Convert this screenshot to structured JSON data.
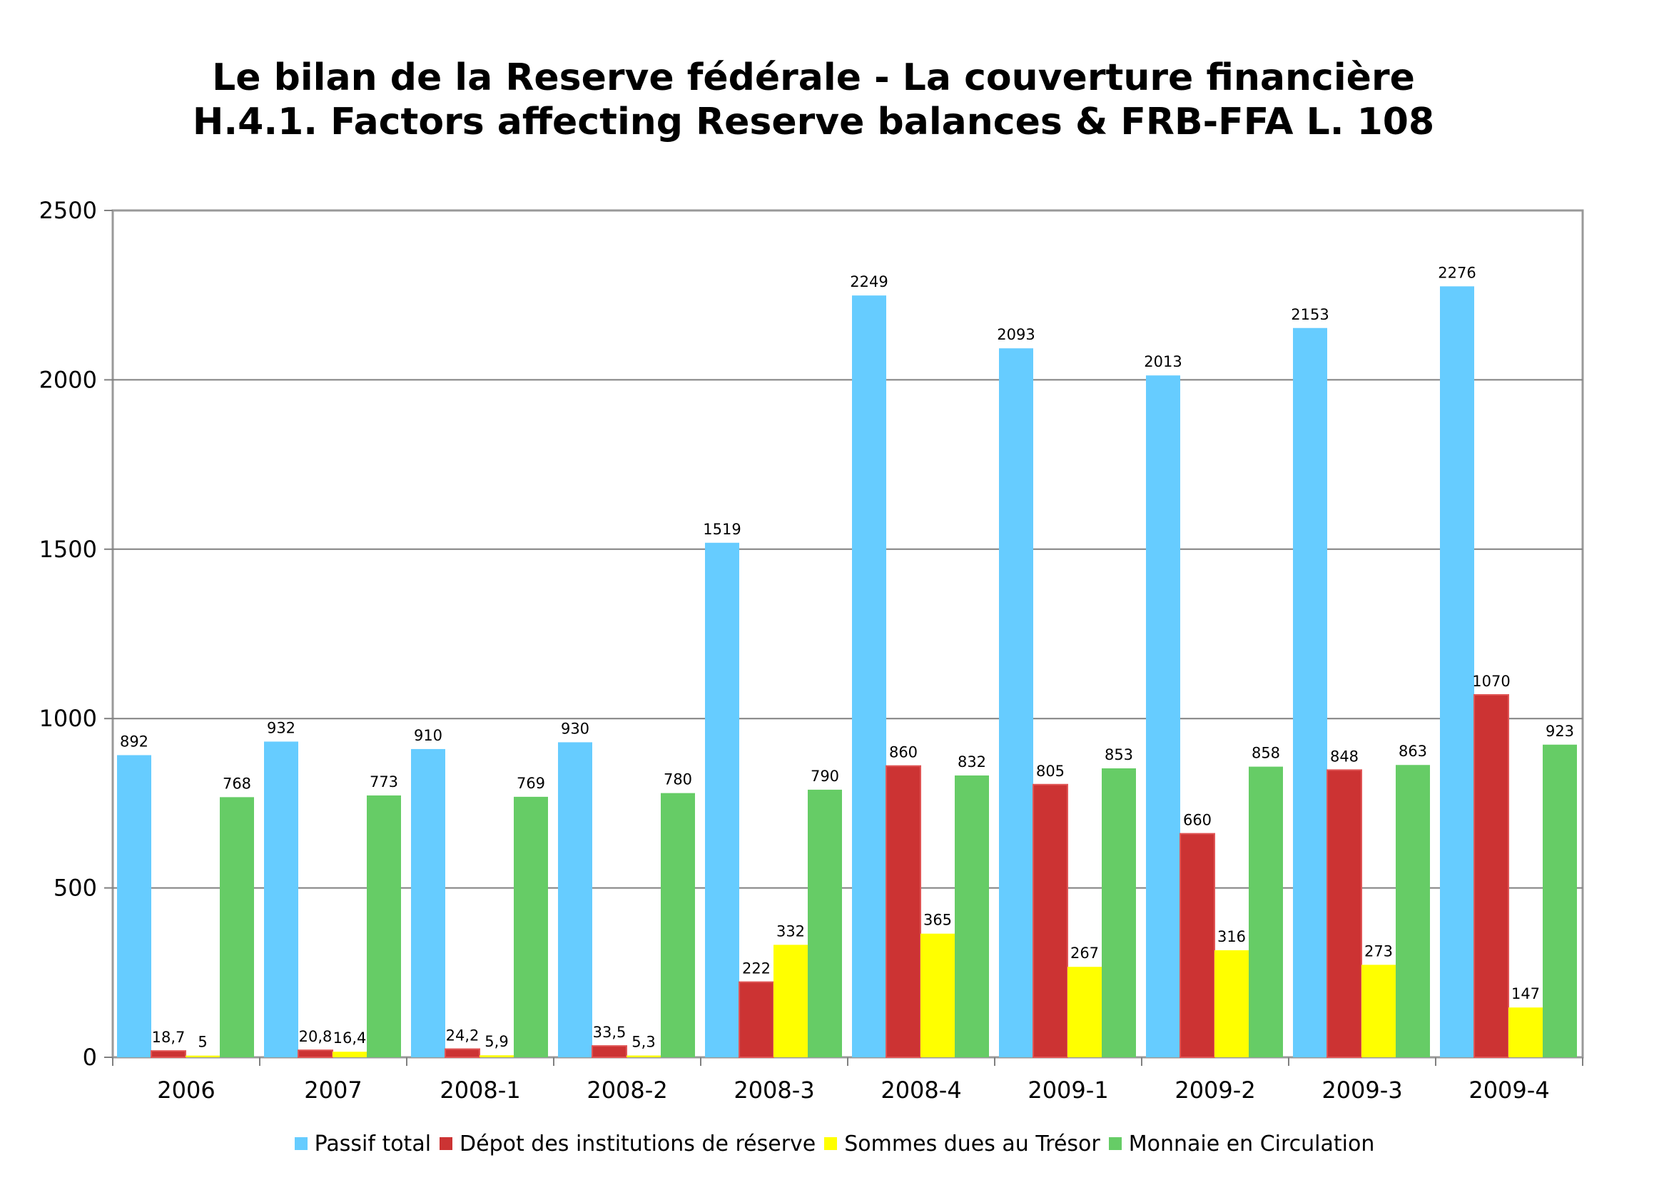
{
  "chart_data": {
    "type": "bar",
    "title": [
      "Le bilan de la Reserve fédérale - La couverture financière",
      "H.4.1. Factors affecting Reserve balances & FRB-FFA L. 108"
    ],
    "categories": [
      "2006",
      "2007",
      "2008-1",
      "2008-2",
      "2008-3",
      "2008-4",
      "2009-1",
      "2009-2",
      "2009-3",
      "2009-4"
    ],
    "series": [
      {
        "name": "Passif total",
        "color": "#66ccff",
        "values": [
          892,
          932,
          910,
          930,
          1519,
          2249,
          2093,
          2013,
          2153,
          2276
        ],
        "labels": [
          "892",
          "932",
          "910",
          "930",
          "1519",
          "2249",
          "2093",
          "2013",
          "2153",
          "2276"
        ]
      },
      {
        "name": "Dépot des institutions de réserve",
        "color": "#cc3333",
        "values": [
          18.7,
          20.8,
          24.2,
          33.5,
          222,
          860,
          805,
          660,
          848,
          1070
        ],
        "labels": [
          "18,7",
          "20,8",
          "24,2",
          "33,5",
          "222",
          "860",
          "805",
          "660",
          "848",
          "1070"
        ]
      },
      {
        "name": "Sommes dues au Trésor",
        "color": "#ffff00",
        "values": [
          5,
          16.4,
          5.9,
          5.3,
          332,
          365,
          267,
          316,
          273,
          147
        ],
        "labels": [
          "5",
          "16,4",
          "5,9",
          "5,3",
          "332",
          "365",
          "267",
          "316",
          "273",
          "147"
        ]
      },
      {
        "name": "Monnaie en Circulation",
        "color": "#66cc66",
        "values": [
          768,
          773,
          769,
          780,
          790,
          832,
          853,
          858,
          863,
          923
        ],
        "labels": [
          "768",
          "773",
          "769",
          "780",
          "790",
          "832",
          "853",
          "858",
          "863",
          "923"
        ]
      }
    ],
    "ylim": [
      0,
      2500
    ],
    "yticks": [
      0,
      500,
      1000,
      1500,
      2000,
      2500
    ],
    "xlabel": "",
    "ylabel": "",
    "grid": true,
    "legend": "bottom"
  }
}
